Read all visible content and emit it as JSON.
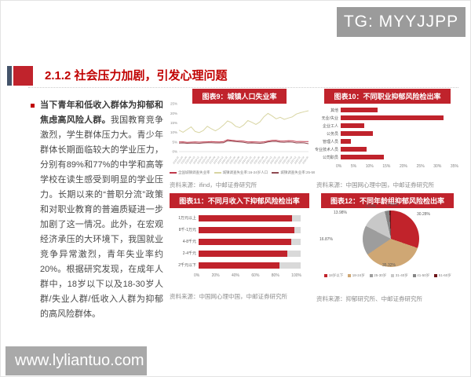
{
  "watermark_top": "TG: MYYJJPP",
  "watermark_bottom": "www.lyliantuo.com",
  "page": {
    "title": "2.1.2 社会压力加剧，引发心理问题",
    "body_bold": "当下青年和低收入群体为抑郁和焦虑高风险人群。",
    "body_text": "我国教育竞争激烈，学生群体压力大。青少年群体长期面临较大的学业压力，分别有89%和77%的中学和高等学校在读生感受到明显的学业压力。长期以来的“普职分流”政策和对职业教育的普遍质疑进一步加剧了这一情况。此外，在宏观经济承压的大环境下，我国就业竞争异常激烈，青年失业率约20%。根据研究发现，在成年人群中，18岁以下以及18-30岁人群/失业人群/低收入人群为抑郁的高风险群体。"
  },
  "colors": {
    "accent_red": "#c0232c",
    "title_red": "#c00000",
    "bar_red": "#c0232c",
    "track_gray": "#d9d9d9"
  },
  "chart_data": [
    {
      "id": "chart9",
      "type": "line",
      "title": "图表9：城镇人口失业率",
      "source": "资料来源：ifind，中邮证券研究所",
      "ylim": [
        0,
        25
      ],
      "yticks": [
        "0%",
        "5%",
        "10%",
        "15%",
        "20%",
        "25%"
      ],
      "x": [
        "2018-02",
        "2018-04",
        "2018-06",
        "2018-08",
        "2018-10",
        "2018-12",
        "2019-02",
        "2019-04",
        "2019-06",
        "2019-08",
        "2019-10",
        "2019-12",
        "2020-02",
        "2020-04",
        "2020-06",
        "2020-08",
        "2020-10",
        "2020-12",
        "2021-02",
        "2021-04",
        "2021-06",
        "2021-08",
        "2021-10",
        "2021-12",
        "2022-02",
        "2022-04",
        "2022-06",
        "2022-08",
        "2022-10",
        "2022-12",
        "2023-02",
        "2023-04",
        "2023-06"
      ],
      "series": [
        {
          "name": "全国城镇调查失业率",
          "color": "#c0394b",
          "values": [
            5.0,
            5.1,
            4.8,
            4.9,
            5.0,
            4.9,
            5.0,
            5.1,
            5.2,
            5.1,
            5.0,
            5.2,
            6.2,
            5.9,
            5.7,
            5.6,
            5.4,
            5.0,
            5.1,
            5.0,
            4.9,
            5.1,
            5.5,
            5.8,
            5.9,
            5.5,
            5.5,
            5.7,
            5.6,
            5.2,
            5.3,
            5.2,
            5.2
          ]
        },
        {
          "name": "城镇调查失业率:16-24岁人口",
          "color": "#d8d5a2",
          "values": [
            11.2,
            10.1,
            11.5,
            12.9,
            10.5,
            9.9,
            11.0,
            13.2,
            11.9,
            10.8,
            12.1,
            13.8,
            16.0,
            15.1,
            13.2,
            12.5,
            13.9,
            16.2,
            15.3,
            14.2,
            15.5,
            18.2,
            19.9,
            18.6,
            17.1,
            17.9,
            16.8,
            17.5,
            18.1,
            19.6,
            20.3,
            20.8,
            21.3
          ]
        },
        {
          "name": "城镇调查失业率:25-59岁人口",
          "color": "#8f4a52",
          "values": [
            4.4,
            4.5,
            4.3,
            4.4,
            4.4,
            4.3,
            4.5,
            4.6,
            4.6,
            4.5,
            4.5,
            4.6,
            5.6,
            5.4,
            5.2,
            5.0,
            4.8,
            4.4,
            4.5,
            4.4,
            4.3,
            4.5,
            5.0,
            5.3,
            5.3,
            4.9,
            4.8,
            5.0,
            4.9,
            4.5,
            4.6,
            4.5,
            4.1
          ]
        }
      ]
    },
    {
      "id": "chart10",
      "type": "bar",
      "title": "图表10：不同职业抑郁风险检出率",
      "source": "资料来源：中国网心理中国，中邮证券研究所",
      "categories": [
        "其他",
        "无业/失业",
        "企业工人",
        "公务员",
        "管理人员",
        "专业技术人员",
        "公司职员"
      ],
      "values": [
        11.2,
        31.0,
        7.2,
        9.8,
        3.1,
        7.7,
        13.1
      ],
      "xlim": [
        0,
        35
      ],
      "xticks": [
        "0%",
        "5%",
        "10%",
        "15%",
        "20%",
        "25%",
        "30%",
        "35%"
      ],
      "bar_color": "#c0232c"
    },
    {
      "id": "chart11",
      "type": "bar",
      "title": "图表11：不同月收入下抑郁风险检出率",
      "source": "资料来源：中国网心理中国，中邮证券研究所",
      "categories": [
        "1万元以上",
        "8千-1万元",
        "4-8千元",
        "2-4千元",
        "2千元以下"
      ],
      "values": [
        91.8,
        94.0,
        91.0,
        87.0,
        79.5
      ],
      "xlim": [
        0,
        100
      ],
      "xticks": [
        "0%",
        "20%",
        "40%",
        "60%",
        "80%",
        "100%"
      ],
      "bar_color": "#c0232c",
      "track_color": "#d9d9d9"
    },
    {
      "id": "chart12",
      "type": "pie",
      "title": "图表12：不同年龄组抑郁风险检出率",
      "source": "资料来源：抑郁研究所、中邮证券研究所",
      "labels": [
        "18岁以下",
        "18-24岁",
        "25-30岁",
        "31-40岁",
        "41-50岁",
        "51-60岁"
      ],
      "values": [
        30.28,
        35.32,
        16.87,
        13.98,
        2.63,
        0.92
      ],
      "slice_labels": [
        "30.28%",
        "35.32%",
        "16.87%",
        "13.98%",
        "2.63%",
        "0.92%"
      ],
      "colors": [
        "#c1232b",
        "#cfa774",
        "#9d9d9d",
        "#c8c8c8",
        "#858585",
        "#6d1418"
      ]
    }
  ]
}
